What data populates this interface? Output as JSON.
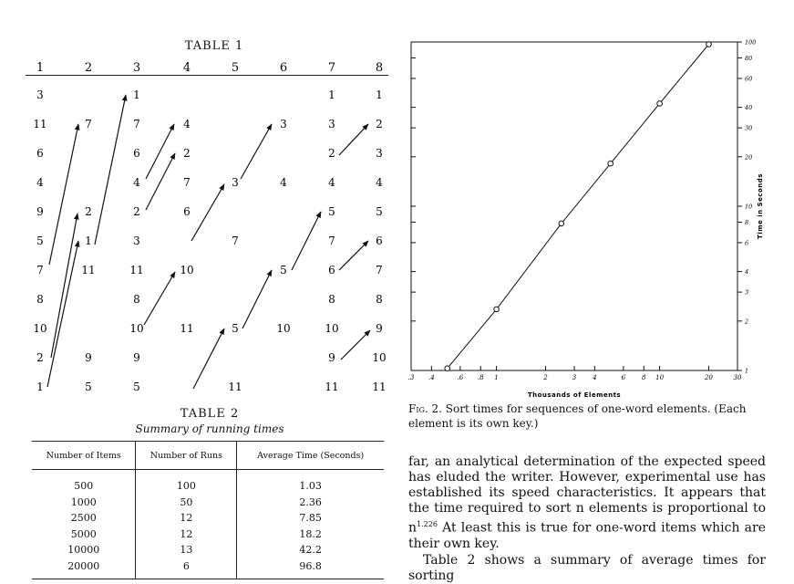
{
  "table1": {
    "title": "TABLE 1",
    "columns": [
      "1",
      "2",
      "3",
      "4",
      "5",
      "6",
      "7",
      "8"
    ],
    "cells": [
      {
        "col": 1,
        "row": 0,
        "v": "3"
      },
      {
        "col": 1,
        "row": 1,
        "v": "11"
      },
      {
        "col": 1,
        "row": 2,
        "v": "6"
      },
      {
        "col": 1,
        "row": 3,
        "v": "4"
      },
      {
        "col": 1,
        "row": 4,
        "v": "9"
      },
      {
        "col": 1,
        "row": 5,
        "v": "5"
      },
      {
        "col": 1,
        "row": 6,
        "v": "7"
      },
      {
        "col": 1,
        "row": 7,
        "v": "8"
      },
      {
        "col": 1,
        "row": 8,
        "v": "10"
      },
      {
        "col": 1,
        "row": 9,
        "v": "2"
      },
      {
        "col": 1,
        "row": 10,
        "v": "1"
      },
      {
        "col": 2,
        "row": 1,
        "v": "7"
      },
      {
        "col": 2,
        "row": 4,
        "v": "2"
      },
      {
        "col": 2,
        "row": 5,
        "v": "1"
      },
      {
        "col": 2,
        "row": 6,
        "v": "11"
      },
      {
        "col": 2,
        "row": 9,
        "v": "9"
      },
      {
        "col": 2,
        "row": 10,
        "v": "5"
      },
      {
        "col": 3,
        "row": 0,
        "v": "1"
      },
      {
        "col": 3,
        "row": 1,
        "v": "7"
      },
      {
        "col": 3,
        "row": 2,
        "v": "6"
      },
      {
        "col": 3,
        "row": 3,
        "v": "4"
      },
      {
        "col": 3,
        "row": 4,
        "v": "2"
      },
      {
        "col": 3,
        "row": 5,
        "v": "3"
      },
      {
        "col": 3,
        "row": 6,
        "v": "11"
      },
      {
        "col": 3,
        "row": 7,
        "v": "8"
      },
      {
        "col": 3,
        "row": 8,
        "v": "10"
      },
      {
        "col": 3,
        "row": 9,
        "v": "9"
      },
      {
        "col": 3,
        "row": 10,
        "v": "5"
      },
      {
        "col": 4,
        "row": 1,
        "v": "4"
      },
      {
        "col": 4,
        "row": 2,
        "v": "2"
      },
      {
        "col": 4,
        "row": 3,
        "v": "7"
      },
      {
        "col": 4,
        "row": 4,
        "v": "6"
      },
      {
        "col": 4,
        "row": 6,
        "v": "10"
      },
      {
        "col": 4,
        "row": 8,
        "v": "11"
      },
      {
        "col": 5,
        "row": 3,
        "v": "3"
      },
      {
        "col": 5,
        "row": 5,
        "v": "7"
      },
      {
        "col": 5,
        "row": 8,
        "v": "5"
      },
      {
        "col": 5,
        "row": 10,
        "v": "11"
      },
      {
        "col": 6,
        "row": 1,
        "v": "3"
      },
      {
        "col": 6,
        "row": 3,
        "v": "4"
      },
      {
        "col": 6,
        "row": 6,
        "v": "5"
      },
      {
        "col": 6,
        "row": 8,
        "v": "10"
      },
      {
        "col": 7,
        "row": 0,
        "v": "1"
      },
      {
        "col": 7,
        "row": 1,
        "v": "3"
      },
      {
        "col": 7,
        "row": 2,
        "v": "2"
      },
      {
        "col": 7,
        "row": 3,
        "v": "4"
      },
      {
        "col": 7,
        "row": 4,
        "v": "5"
      },
      {
        "col": 7,
        "row": 5,
        "v": "7"
      },
      {
        "col": 7,
        "row": 6,
        "v": "6"
      },
      {
        "col": 7,
        "row": 7,
        "v": "8"
      },
      {
        "col": 7,
        "row": 8,
        "v": "10"
      },
      {
        "col": 7,
        "row": 9,
        "v": "9"
      },
      {
        "col": 7,
        "row": 10,
        "v": "11"
      },
      {
        "col": 8,
        "row": 0,
        "v": "1"
      },
      {
        "col": 8,
        "row": 1,
        "v": "2"
      },
      {
        "col": 8,
        "row": 2,
        "v": "3"
      },
      {
        "col": 8,
        "row": 3,
        "v": "4"
      },
      {
        "col": 8,
        "row": 4,
        "v": "5"
      },
      {
        "col": 8,
        "row": 5,
        "v": "6"
      },
      {
        "col": 8,
        "row": 6,
        "v": "7"
      },
      {
        "col": 8,
        "row": 7,
        "v": "8"
      },
      {
        "col": 8,
        "row": 8,
        "v": "9"
      },
      {
        "col": 8,
        "row": 9,
        "v": "10"
      },
      {
        "col": 8,
        "row": 10,
        "v": "11"
      }
    ]
  },
  "table2": {
    "title": "TABLE 2",
    "subtitle": "Summary of running times",
    "headers": [
      "Number of Items",
      "Number of Runs",
      "Average Time (Seconds)"
    ],
    "rows": [
      [
        "500",
        "100",
        "1.03"
      ],
      [
        "1000",
        "50",
        "2.36"
      ],
      [
        "2500",
        "12",
        "7.85"
      ],
      [
        "5000",
        "12",
        "18.2"
      ],
      [
        "10000",
        "13",
        "42.2"
      ],
      [
        "20000",
        "6",
        "96.8"
      ]
    ]
  },
  "chart_data": {
    "type": "line",
    "x_scale": "log",
    "y_scale": "log",
    "xlabel": "Thousands of Elements",
    "ylabel": "Time in Seconds",
    "x_tick_labels": [
      ".3",
      ".4",
      ".6",
      ".8",
      "1",
      "2",
      "3",
      "4",
      "6",
      "8",
      "10",
      "20",
      "30"
    ],
    "y_tick_labels": [
      "1",
      "2",
      "3",
      "4",
      "6",
      "8",
      "10",
      "20",
      "30",
      "40",
      "60",
      "80",
      "100"
    ],
    "xlim": [
      0.3,
      30
    ],
    "ylim": [
      1,
      100
    ],
    "points": [
      {
        "x": 0.5,
        "y": 1.03
      },
      {
        "x": 1,
        "y": 2.36
      },
      {
        "x": 2.5,
        "y": 7.85
      },
      {
        "x": 5,
        "y": 18.2
      },
      {
        "x": 10,
        "y": 42.2
      },
      {
        "x": 20,
        "y": 96.8
      }
    ]
  },
  "figure": {
    "caption_label": "Fig. 2.",
    "caption_text": " Sort times for sequences of one-word elements. (Each element is its own key.)"
  },
  "body": {
    "para1_main": "far, an analytical determination of the expected speed has eluded the writer. However, experimental use has established its speed characteristics. It appears that the time required to sort n elements is proportional to n",
    "para1_exp": "1.226",
    "para1_end": " At least this is true for one-word items which are their own key.",
    "para2": "Table 2 shows a summary of average times for sorting"
  }
}
